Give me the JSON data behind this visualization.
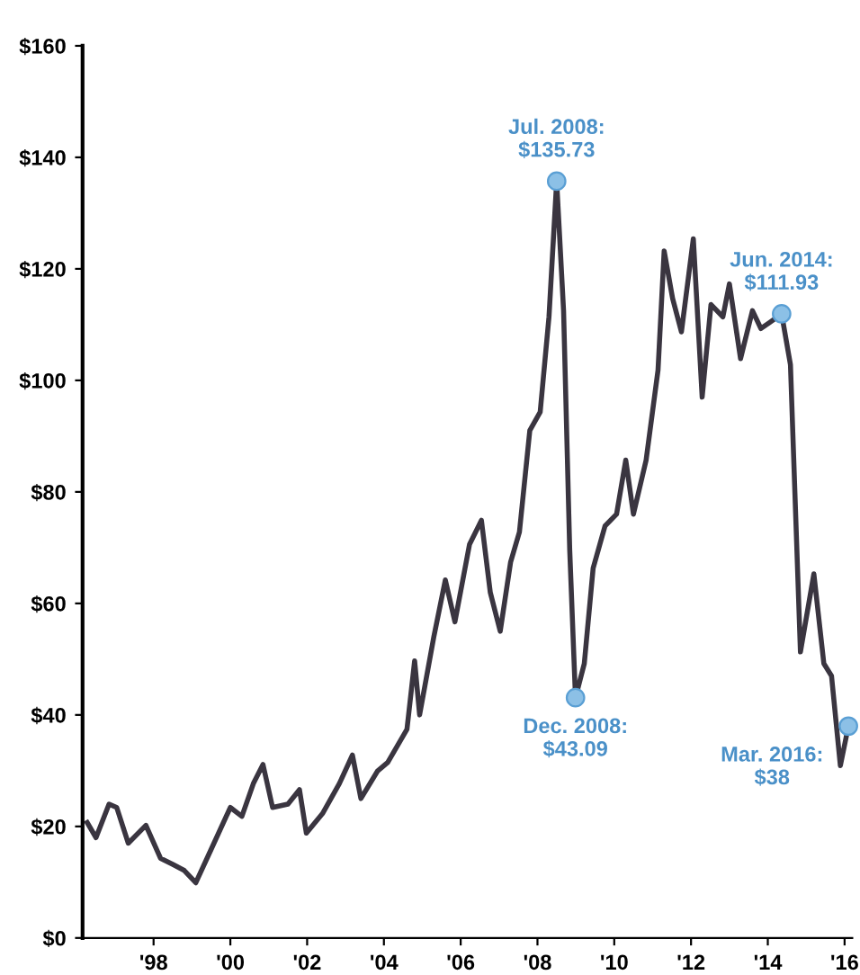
{
  "chart_data": {
    "type": "line",
    "x": [
      1996.27,
      1996.5,
      1996.84,
      1997.04,
      1997.34,
      1997.8,
      1998.18,
      1998.5,
      1998.8,
      1999.1,
      1999.5,
      2000.0,
      2000.3,
      2000.6,
      2000.85,
      2001.1,
      2001.5,
      2001.8,
      2001.98,
      2002.4,
      2002.84,
      2003.18,
      2003.4,
      2003.83,
      2004.1,
      2004.6,
      2004.8,
      2004.93,
      2005.3,
      2005.6,
      2005.85,
      2006.23,
      2006.54,
      2006.77,
      2007.03,
      2007.3,
      2007.53,
      2007.8,
      2008.07,
      2008.3,
      2008.5,
      2008.68,
      2008.84,
      2008.99,
      2009.22,
      2009.45,
      2009.76,
      2010.06,
      2010.3,
      2010.5,
      2010.83,
      2011.14,
      2011.3,
      2011.52,
      2011.75,
      2012.06,
      2012.29,
      2012.52,
      2012.83,
      2013.0,
      2013.29,
      2013.6,
      2013.82,
      2014.05,
      2014.36,
      2014.59,
      2014.85,
      2015.2,
      2015.46,
      2015.66,
      2015.89,
      2016.1
    ],
    "series": [
      {
        "color": "#3a3540",
        "values": [
          20.7,
          18,
          24,
          23.4,
          17,
          20.2,
          14.3,
          13.2,
          12.1,
          9.9,
          15.9,
          23.4,
          21.8,
          27.7,
          31.1,
          23.4,
          24,
          26.6,
          18.8,
          22.3,
          27.7,
          32.8,
          25,
          29.9,
          31.5,
          37.4,
          49.7,
          40,
          54,
          64.2,
          56.7,
          70.6,
          74.9,
          62,
          55,
          67.4,
          72.8,
          91,
          94.3,
          111.4,
          135.73,
          112.5,
          69.6,
          43.09,
          49.2,
          66.3,
          73.9,
          76,
          85.7,
          76,
          85.7,
          101.8,
          123.2,
          114.7,
          108.7,
          125.4,
          97,
          113.6,
          111.4,
          117.3,
          103.9,
          112.5,
          109.3,
          110.4,
          111.93,
          102.8,
          51.3,
          65.3,
          49.2,
          47,
          30.9,
          38
        ]
      }
    ],
    "xlim": [
      1996.15,
      2016.2
    ],
    "xticks": [
      {
        "value": 1998,
        "label": "'98"
      },
      {
        "value": 2000,
        "label": "'00"
      },
      {
        "value": 2002,
        "label": "'02"
      },
      {
        "value": 2004,
        "label": "'04"
      },
      {
        "value": 2006,
        "label": "'06"
      },
      {
        "value": 2008,
        "label": "'08"
      },
      {
        "value": 2010,
        "label": "'10"
      },
      {
        "value": 2012,
        "label": "'12"
      },
      {
        "value": 2014,
        "label": "'14"
      },
      {
        "value": 2016,
        "label": "'16"
      }
    ],
    "ylim": [
      0,
      160
    ],
    "yticks": [
      {
        "value": 0,
        "label": "$0"
      },
      {
        "value": 20,
        "label": "$20"
      },
      {
        "value": 40,
        "label": "$40"
      },
      {
        "value": 60,
        "label": "$60"
      },
      {
        "value": 80,
        "label": "$80"
      },
      {
        "value": 100,
        "label": "$100"
      },
      {
        "value": 120,
        "label": "$120"
      },
      {
        "value": 140,
        "label": "$140"
      },
      {
        "value": 160,
        "label": "$160"
      }
    ],
    "annotations": [
      {
        "text": "Jul. 2008:\n$135.73",
        "x": 2008.5,
        "y": 135.73
      },
      {
        "text": "Dec. 2008:\n$43.09",
        "x": 2008.99,
        "y": 43.09
      },
      {
        "text": "Jun. 2014:\n$111.93",
        "x": 2014.36,
        "y": 111.93
      },
      {
        "text": "Mar. 2016:\n$38",
        "x": 2016.1,
        "y": 38
      }
    ],
    "grid": false,
    "legend": false,
    "marker": "none",
    "line_style": "solid"
  }
}
